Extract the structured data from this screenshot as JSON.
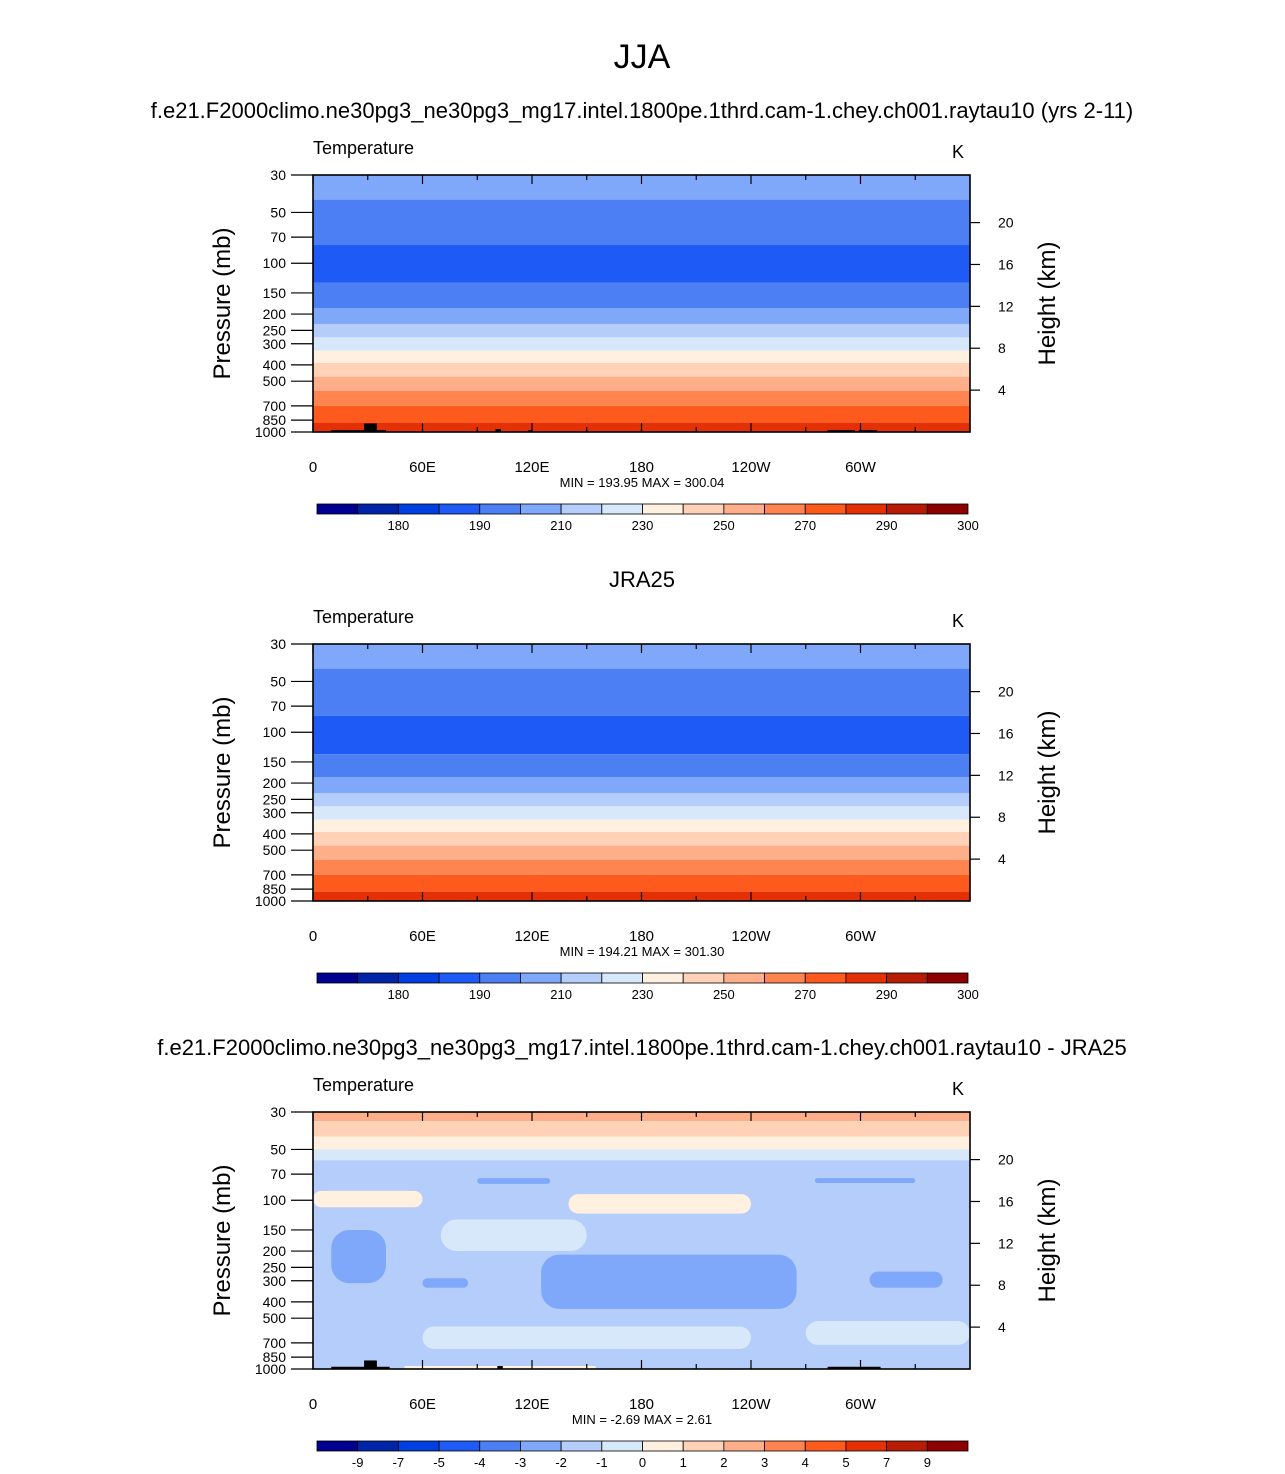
{
  "page_title": "JJA",
  "colors": {
    "temperature_scale": [
      "#000090",
      "#0024a8",
      "#0040e0",
      "#1e5af5",
      "#4b7ff3",
      "#80a8fa",
      "#b4cdfa",
      "#d7e8fb",
      "#fff0e0",
      "#ffd2b8",
      "#ffae8a",
      "#ff8450",
      "#ff5a1e",
      "#e43005",
      "#b81b03",
      "#8c0000"
    ],
    "land_mask": "#000000",
    "frame": "#000000"
  },
  "chart_data": [
    {
      "type": "heatmap",
      "id": "model",
      "title": "f.e21.F2000climo.ne30pg3_ne30pg3_mg17.intel.1800pe.1thrd.cam-1.chey.ch001.raytau10 (yrs 2-11)",
      "variable_label": "Temperature",
      "units": "K",
      "ylabel": "Pressure (mb)",
      "ylabel_right": "Height (km)",
      "x_ticks": [
        "0",
        "60E",
        "120E",
        "180",
        "120W",
        "60W"
      ],
      "x_tick_values": [
        0,
        60,
        120,
        180,
        240,
        300
      ],
      "xlim": [
        0,
        360
      ],
      "y_ticks": [
        "30",
        "50",
        "70",
        "100",
        "150",
        "200",
        "250",
        "300",
        "400",
        "500",
        "700",
        "850",
        "1000"
      ],
      "y_tick_values": [
        30,
        50,
        70,
        100,
        150,
        200,
        250,
        300,
        400,
        500,
        700,
        850,
        1000
      ],
      "ylim": [
        1000,
        30
      ],
      "height_ticks": [
        "20",
        "16",
        "12",
        "8",
        "4"
      ],
      "height_tick_values": [
        20,
        16,
        12,
        8,
        4
      ],
      "stats": "MIN = 193.95  MAX = 300.04",
      "min": 193.95,
      "max": 300.04,
      "colorbar_labels": [
        "180",
        "190",
        "210",
        "230",
        "250",
        "270",
        "290",
        "300"
      ],
      "colorbar_label_boundaries": [
        2,
        4,
        6,
        8,
        10,
        12,
        14,
        16
      ],
      "bands": [
        {
          "p_top": 30,
          "p_bottom": 42,
          "level": 5
        },
        {
          "p_top": 42,
          "p_bottom": 78,
          "level": 4
        },
        {
          "p_top": 78,
          "p_bottom": 130,
          "level": 3
        },
        {
          "p_top": 130,
          "p_bottom": 185,
          "level": 4
        },
        {
          "p_top": 185,
          "p_bottom": 230,
          "level": 5
        },
        {
          "p_top": 230,
          "p_bottom": 275,
          "level": 6
        },
        {
          "p_top": 275,
          "p_bottom": 330,
          "level": 7
        },
        {
          "p_top": 330,
          "p_bottom": 390,
          "level": 8
        },
        {
          "p_top": 390,
          "p_bottom": 470,
          "level": 9
        },
        {
          "p_top": 470,
          "p_bottom": 570,
          "level": 10
        },
        {
          "p_top": 570,
          "p_bottom": 700,
          "level": 11
        },
        {
          "p_top": 700,
          "p_bottom": 880,
          "level": 12
        },
        {
          "p_top": 880,
          "p_bottom": 1000,
          "level": 13
        }
      ],
      "land_bars": [
        {
          "lon0": 10,
          "lon1": 40,
          "p_top": 975
        },
        {
          "lon0": 28,
          "lon1": 35,
          "p_top": 890
        },
        {
          "lon0": 100,
          "lon1": 103,
          "p_top": 960
        },
        {
          "lon0": 118,
          "lon1": 120,
          "p_top": 975
        },
        {
          "lon0": 282,
          "lon1": 297,
          "p_top": 975
        },
        {
          "lon0": 299,
          "lon1": 309,
          "p_top": 975
        }
      ]
    },
    {
      "type": "heatmap",
      "id": "obs",
      "title": "JRA25",
      "variable_label": "Temperature",
      "units": "K",
      "ylabel": "Pressure (mb)",
      "ylabel_right": "Height (km)",
      "x_ticks": [
        "0",
        "60E",
        "120E",
        "180",
        "120W",
        "60W"
      ],
      "x_tick_values": [
        0,
        60,
        120,
        180,
        240,
        300
      ],
      "xlim": [
        0,
        360
      ],
      "y_ticks": [
        "30",
        "50",
        "70",
        "100",
        "150",
        "200",
        "250",
        "300",
        "400",
        "500",
        "700",
        "850",
        "1000"
      ],
      "y_tick_values": [
        30,
        50,
        70,
        100,
        150,
        200,
        250,
        300,
        400,
        500,
        700,
        850,
        1000
      ],
      "ylim": [
        1000,
        30
      ],
      "height_ticks": [
        "20",
        "16",
        "12",
        "8",
        "4"
      ],
      "height_tick_values": [
        20,
        16,
        12,
        8,
        4
      ],
      "stats": "MIN = 194.21  MAX = 301.30",
      "min": 194.21,
      "max": 301.3,
      "colorbar_labels": [
        "180",
        "190",
        "210",
        "230",
        "250",
        "270",
        "290",
        "300"
      ],
      "colorbar_label_boundaries": [
        2,
        4,
        6,
        8,
        10,
        12,
        14,
        16
      ],
      "bands": [
        {
          "p_top": 30,
          "p_bottom": 42,
          "level": 5
        },
        {
          "p_top": 42,
          "p_bottom": 80,
          "level": 4
        },
        {
          "p_top": 80,
          "p_bottom": 135,
          "level": 3
        },
        {
          "p_top": 135,
          "p_bottom": 185,
          "level": 4
        },
        {
          "p_top": 185,
          "p_bottom": 230,
          "level": 5
        },
        {
          "p_top": 230,
          "p_bottom": 275,
          "level": 6
        },
        {
          "p_top": 275,
          "p_bottom": 330,
          "level": 7
        },
        {
          "p_top": 330,
          "p_bottom": 390,
          "level": 8
        },
        {
          "p_top": 390,
          "p_bottom": 470,
          "level": 9
        },
        {
          "p_top": 470,
          "p_bottom": 570,
          "level": 10
        },
        {
          "p_top": 570,
          "p_bottom": 700,
          "level": 11
        },
        {
          "p_top": 700,
          "p_bottom": 880,
          "level": 12
        },
        {
          "p_top": 880,
          "p_bottom": 1000,
          "level": 13
        }
      ],
      "land_bars": []
    },
    {
      "type": "heatmap",
      "id": "diff",
      "title": "f.e21.F2000climo.ne30pg3_ne30pg3_mg17.intel.1800pe.1thrd.cam-1.chey.ch001.raytau10 - JRA25",
      "variable_label": "Temperature",
      "units": "K",
      "ylabel": "Pressure (mb)",
      "ylabel_right": "Height (km)",
      "x_ticks": [
        "0",
        "60E",
        "120E",
        "180",
        "120W",
        "60W"
      ],
      "x_tick_values": [
        0,
        60,
        120,
        180,
        240,
        300
      ],
      "xlim": [
        0,
        360
      ],
      "y_ticks": [
        "30",
        "50",
        "70",
        "100",
        "150",
        "200",
        "250",
        "300",
        "400",
        "500",
        "700",
        "850",
        "1000"
      ],
      "y_tick_values": [
        30,
        50,
        70,
        100,
        150,
        200,
        250,
        300,
        400,
        500,
        700,
        850,
        1000
      ],
      "ylim": [
        1000,
        30
      ],
      "height_ticks": [
        "20",
        "16",
        "12",
        "8",
        "4"
      ],
      "height_tick_values": [
        20,
        16,
        12,
        8,
        4
      ],
      "stats": "MIN =  -2.69  MAX =   2.61",
      "min": -2.69,
      "max": 2.61,
      "colorbar_labels": [
        "-9",
        "-7",
        "-5",
        "-4",
        "-3",
        "-2",
        "-1",
        "0",
        "1",
        "2",
        "3",
        "4",
        "5",
        "7",
        "9"
      ],
      "colorbar_label_boundaries": [
        1,
        2,
        3,
        4,
        5,
        6,
        7,
        8,
        9,
        10,
        11,
        12,
        13,
        14,
        15
      ],
      "bands": [
        {
          "p_top": 30,
          "p_bottom": 34,
          "level": 10
        },
        {
          "p_top": 34,
          "p_bottom": 42,
          "level": 9
        },
        {
          "p_top": 42,
          "p_bottom": 50,
          "level": 8
        },
        {
          "p_top": 50,
          "p_bottom": 1000,
          "level": 7
        }
      ],
      "patches": [
        {
          "lon0": 0,
          "lon1": 360,
          "p_top": 58,
          "p_bottom": 1000,
          "level": 6
        },
        {
          "lon0": 70,
          "lon1": 150,
          "p_top": 130,
          "p_bottom": 200,
          "level": 7
        },
        {
          "lon0": 60,
          "lon1": 240,
          "p_top": 560,
          "p_bottom": 760,
          "level": 7
        },
        {
          "lon0": 270,
          "lon1": 360,
          "p_top": 520,
          "p_bottom": 720,
          "level": 7
        },
        {
          "lon0": 125,
          "lon1": 265,
          "p_top": 210,
          "p_bottom": 440,
          "level": 5
        },
        {
          "lon0": 10,
          "lon1": 40,
          "p_top": 150,
          "p_bottom": 310,
          "level": 5
        },
        {
          "lon0": 60,
          "lon1": 85,
          "p_top": 290,
          "p_bottom": 330,
          "level": 5
        },
        {
          "lon0": 305,
          "lon1": 345,
          "p_top": 265,
          "p_bottom": 330,
          "level": 5
        },
        {
          "lon0": 90,
          "lon1": 130,
          "p_top": 74,
          "p_bottom": 80,
          "level": 5
        },
        {
          "lon0": 275,
          "lon1": 330,
          "p_top": 74,
          "p_bottom": 79,
          "level": 5
        },
        {
          "lon0": 0,
          "lon1": 60,
          "p_top": 88,
          "p_bottom": 110,
          "level": 8
        },
        {
          "lon0": 140,
          "lon1": 240,
          "p_top": 92,
          "p_bottom": 120,
          "level": 8
        },
        {
          "lon0": 50,
          "lon1": 155,
          "p_top": 960,
          "p_bottom": 1000,
          "level": 8
        }
      ],
      "land_bars": [
        {
          "lon0": 10,
          "lon1": 42,
          "p_top": 970
        },
        {
          "lon0": 28,
          "lon1": 35,
          "p_top": 890
        },
        {
          "lon0": 101,
          "lon1": 104,
          "p_top": 960
        },
        {
          "lon0": 282,
          "lon1": 311,
          "p_top": 970
        }
      ]
    }
  ]
}
